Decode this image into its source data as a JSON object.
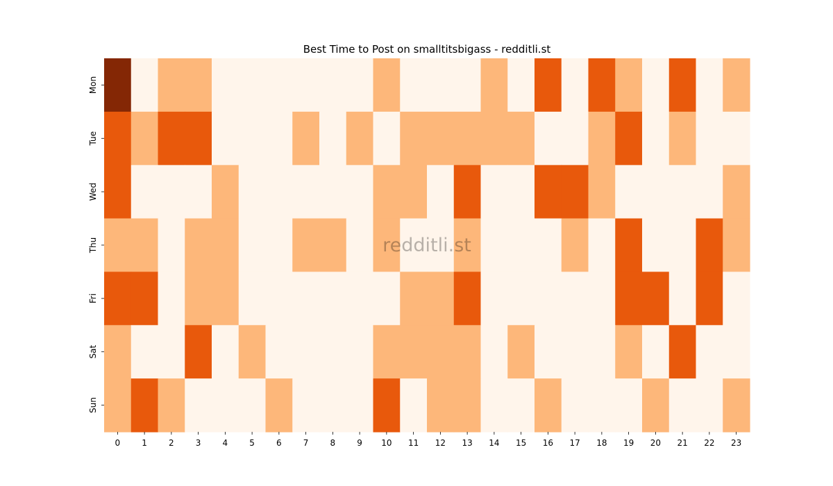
{
  "chart_data": {
    "type": "heatmap",
    "title": "Best Time to Post on smalltitsbigass - redditli.st",
    "xlabel": "",
    "ylabel": "",
    "x_categories": [
      "0",
      "1",
      "2",
      "3",
      "4",
      "5",
      "6",
      "7",
      "8",
      "9",
      "10",
      "11",
      "12",
      "13",
      "14",
      "15",
      "16",
      "17",
      "18",
      "19",
      "20",
      "21",
      "22",
      "23"
    ],
    "y_categories": [
      "Mon",
      "Tue",
      "Wed",
      "Thu",
      "Fri",
      "Sat",
      "Sun"
    ],
    "values": [
      [
        4,
        0,
        1,
        1,
        0,
        0,
        0,
        0,
        0,
        0,
        1,
        0,
        0,
        0,
        1,
        0,
        2,
        0,
        2,
        1,
        0,
        2,
        0,
        1
      ],
      [
        2,
        1,
        2,
        2,
        0,
        0,
        0,
        1,
        0,
        1,
        0,
        1,
        1,
        1,
        1,
        1,
        0,
        0,
        1,
        2,
        0,
        1,
        0,
        0
      ],
      [
        2,
        0,
        0,
        0,
        1,
        0,
        0,
        0,
        0,
        0,
        1,
        1,
        0,
        2,
        0,
        0,
        2,
        2,
        1,
        0,
        0,
        0,
        0,
        1
      ],
      [
        1,
        1,
        0,
        1,
        1,
        0,
        0,
        1,
        1,
        0,
        1,
        0,
        0,
        1,
        0,
        0,
        0,
        1,
        0,
        2,
        0,
        0,
        2,
        1
      ],
      [
        2,
        2,
        0,
        1,
        1,
        0,
        0,
        0,
        0,
        0,
        0,
        1,
        1,
        2,
        0,
        0,
        0,
        0,
        0,
        2,
        2,
        0,
        2,
        0
      ],
      [
        1,
        0,
        0,
        2,
        0,
        1,
        0,
        0,
        0,
        0,
        1,
        1,
        1,
        1,
        0,
        1,
        0,
        0,
        0,
        1,
        0,
        2,
        0,
        0
      ],
      [
        1,
        2,
        1,
        0,
        0,
        0,
        1,
        0,
        0,
        0,
        2,
        0,
        1,
        1,
        0,
        0,
        1,
        0,
        0,
        0,
        1,
        0,
        0,
        1
      ]
    ],
    "colormap": "Oranges",
    "level_colors": [
      "#fff5eb",
      "#fdb77a",
      "#e8590c",
      "#b33c05",
      "#842705"
    ],
    "watermark": "redditli.st",
    "grid": false,
    "legend": "none"
  }
}
